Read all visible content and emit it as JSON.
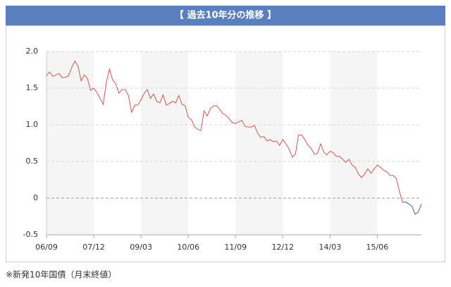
{
  "header": {
    "title": "【 過去10年分の推移 】"
  },
  "footer": {
    "note": "※新発10年国債（月末終値）"
  },
  "chart_data": {
    "type": "line",
    "x": [
      "06/09",
      "06/10",
      "06/11",
      "06/12",
      "07/01",
      "07/02",
      "07/03",
      "07/04",
      "07/05",
      "07/06",
      "07/07",
      "07/08",
      "07/09",
      "07/10",
      "07/11",
      "07/12",
      "08/01",
      "08/02",
      "08/03",
      "08/04",
      "08/05",
      "08/06",
      "08/07",
      "08/08",
      "08/09",
      "08/10",
      "08/11",
      "08/12",
      "09/01",
      "09/02",
      "09/03",
      "09/04",
      "09/05",
      "09/06",
      "09/07",
      "09/08",
      "09/09",
      "09/10",
      "09/11",
      "09/12",
      "10/01",
      "10/02",
      "10/03",
      "10/04",
      "10/05",
      "10/06",
      "10/07",
      "10/08",
      "10/09",
      "10/10",
      "10/11",
      "10/12",
      "11/01",
      "11/02",
      "11/03",
      "11/04",
      "11/05",
      "11/06",
      "11/07",
      "11/08",
      "11/09",
      "11/10",
      "11/11",
      "11/12",
      "12/01",
      "12/02",
      "12/03",
      "12/04",
      "12/05",
      "12/06",
      "12/07",
      "12/08",
      "12/09",
      "12/10",
      "12/11",
      "12/12",
      "13/01",
      "13/02",
      "13/03",
      "13/04",
      "13/05",
      "13/06",
      "13/07",
      "13/08",
      "13/09",
      "13/10",
      "13/11",
      "13/12",
      "14/01",
      "14/02",
      "14/03",
      "14/04",
      "14/05",
      "14/06",
      "14/07",
      "14/08",
      "14/09",
      "14/10",
      "14/11",
      "14/12",
      "15/01",
      "15/02",
      "15/03",
      "15/04",
      "15/05",
      "15/06",
      "15/07",
      "15/08",
      "15/09",
      "15/10",
      "15/11",
      "15/12",
      "16/01",
      "16/02",
      "16/03",
      "16/04",
      "16/05",
      "16/06",
      "16/07",
      "16/08"
    ],
    "values": [
      1.67,
      1.72,
      1.66,
      1.68,
      1.7,
      1.64,
      1.65,
      1.67,
      1.78,
      1.87,
      1.8,
      1.6,
      1.68,
      1.63,
      1.47,
      1.5,
      1.44,
      1.36,
      1.28,
      1.58,
      1.76,
      1.61,
      1.56,
      1.43,
      1.48,
      1.48,
      1.4,
      1.17,
      1.27,
      1.27,
      1.34,
      1.43,
      1.48,
      1.36,
      1.42,
      1.32,
      1.3,
      1.41,
      1.27,
      1.29,
      1.32,
      1.3,
      1.4,
      1.28,
      1.26,
      1.1,
      1.07,
      0.97,
      0.94,
      0.92,
      1.19,
      1.12,
      1.22,
      1.26,
      1.26,
      1.21,
      1.15,
      1.13,
      1.08,
      1.03,
      1.02,
      1.04,
      1.06,
      0.98,
      0.97,
      0.97,
      0.99,
      0.89,
      0.83,
      0.84,
      0.78,
      0.8,
      0.77,
      0.78,
      0.72,
      0.8,
      0.74,
      0.67,
      0.56,
      0.6,
      0.86,
      0.86,
      0.8,
      0.72,
      0.68,
      0.6,
      0.61,
      0.74,
      0.63,
      0.59,
      0.64,
      0.62,
      0.57,
      0.57,
      0.53,
      0.49,
      0.53,
      0.45,
      0.42,
      0.33,
      0.28,
      0.33,
      0.4,
      0.34,
      0.4,
      0.45,
      0.42,
      0.38,
      0.36,
      0.31,
      0.31,
      0.27,
      0.1,
      -0.06,
      -0.05,
      -0.08,
      -0.11,
      -0.22,
      -0.19,
      -0.08
    ],
    "color": "#d9534f",
    "negative_color": "#4a5cc4",
    "xticks": [
      "06/09",
      "07/12",
      "09/03",
      "10/06",
      "11/09",
      "12/12",
      "14/03",
      "15/06"
    ],
    "ylim": [
      -0.5,
      2.0
    ],
    "yticks": [
      {
        "value": 2,
        "label": "2.0"
      },
      1.5,
      {
        "value": 1,
        "label": "1.0"
      },
      0.5,
      0,
      -0.5
    ],
    "grid": true
  }
}
